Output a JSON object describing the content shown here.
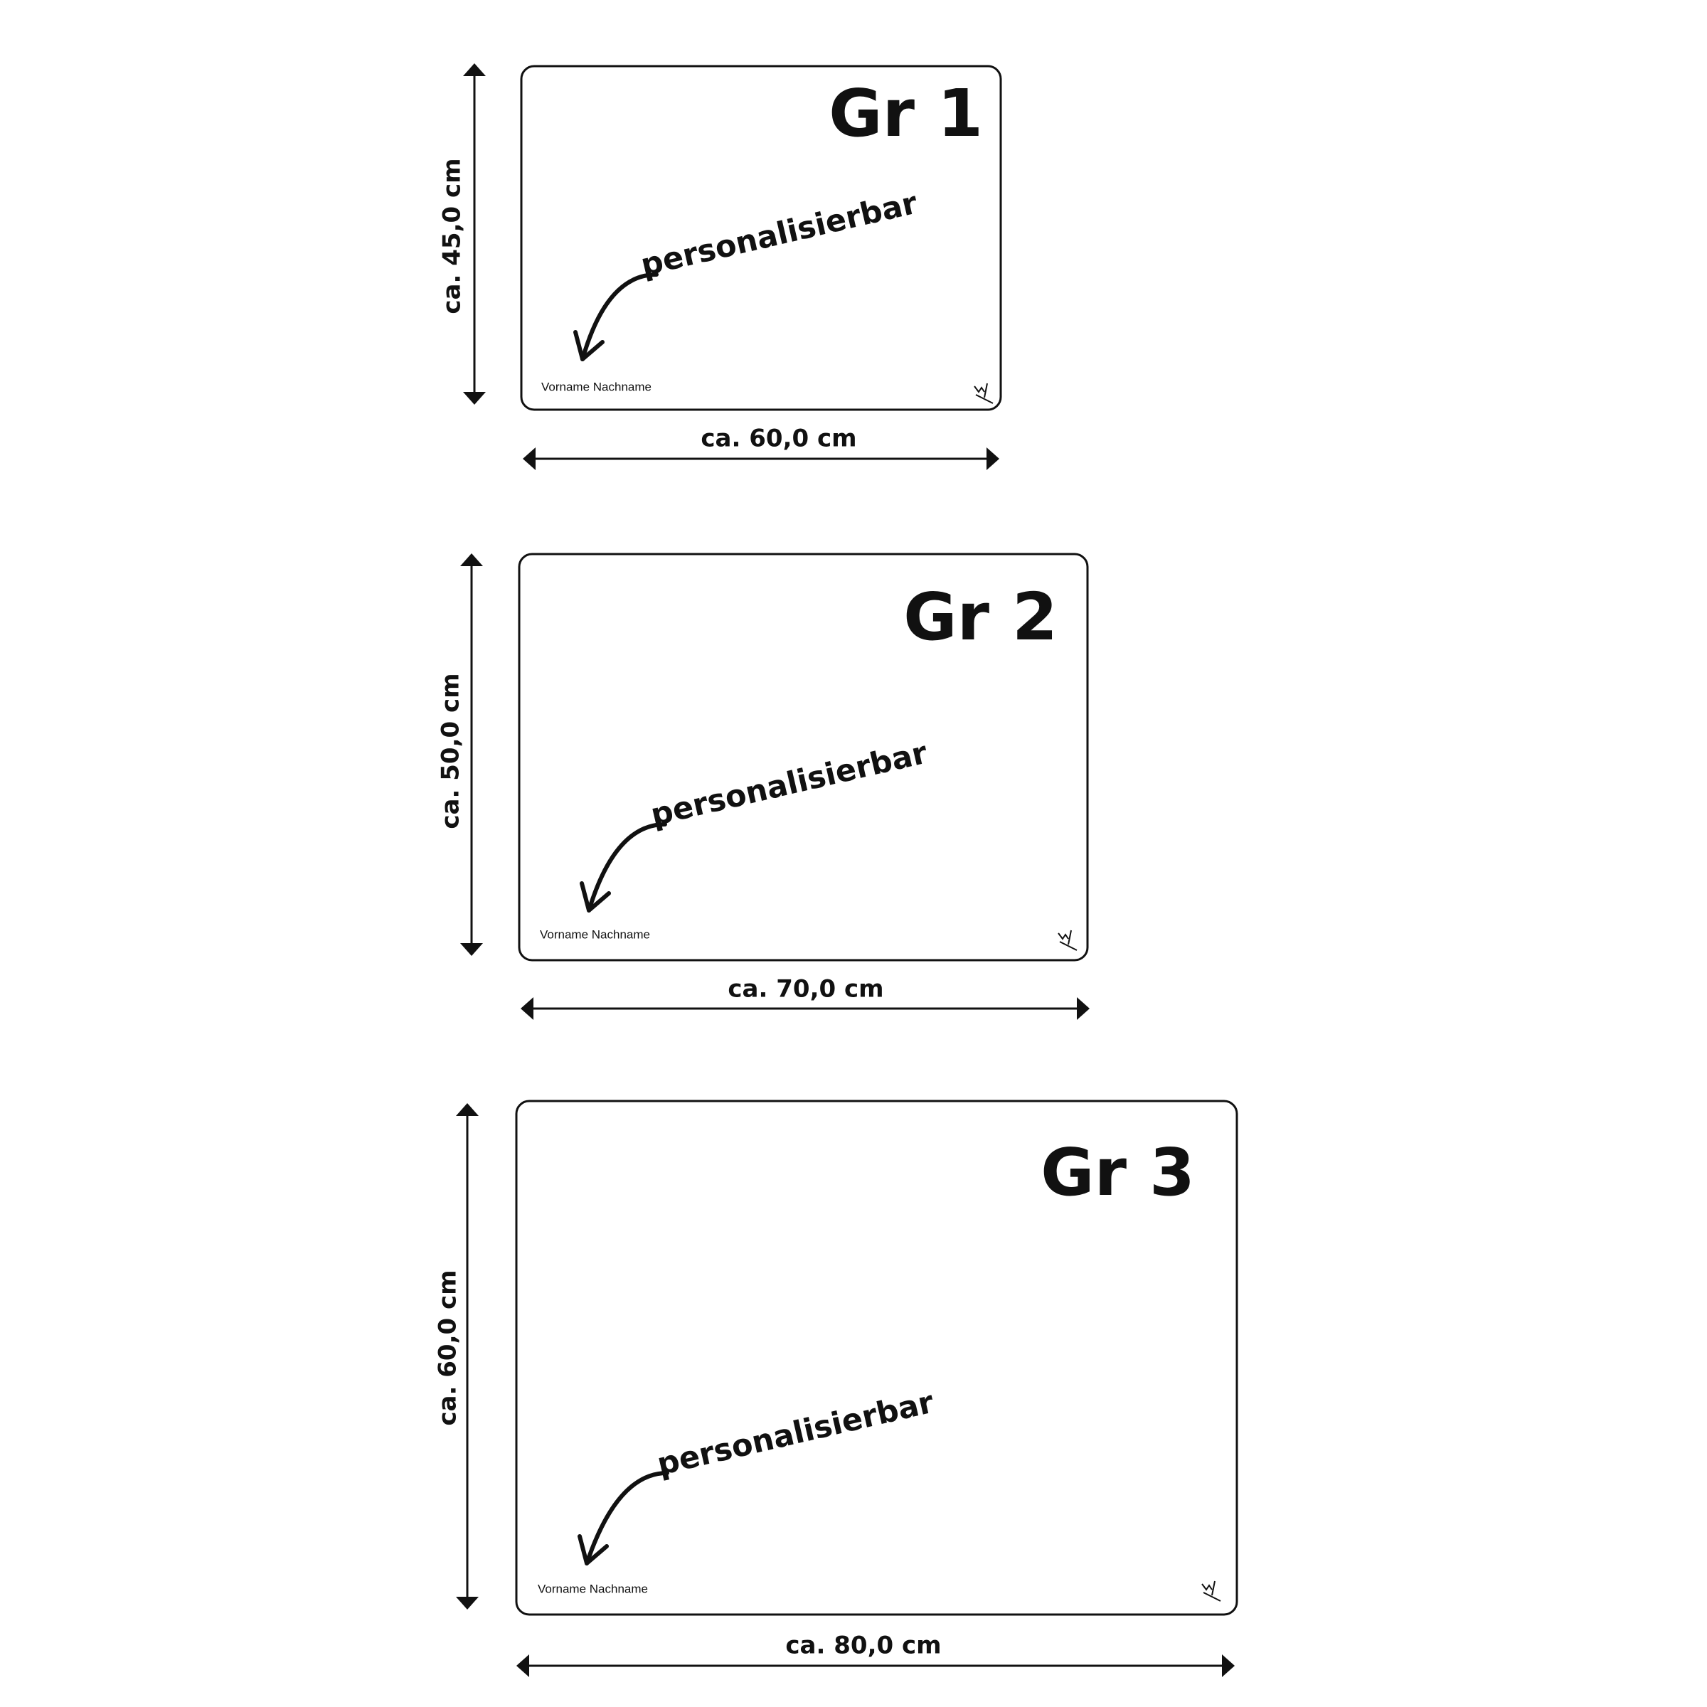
{
  "panels": [
    {
      "title": "Gr 1",
      "personalization": "personalisierbar",
      "name": "Vorname Nachname",
      "width_label": "ca. 60,0 cm",
      "height_label": "ca. 45,0 cm"
    },
    {
      "title": "Gr 2",
      "personalization": "personalisierbar",
      "name": "Vorname Nachname",
      "width_label": "ca. 70,0 cm",
      "height_label": "ca. 50,0 cm"
    },
    {
      "title": "Gr 3",
      "personalization": "personalisierbar",
      "name": "Vorname Nachname",
      "width_label": "ca. 80,0 cm",
      "height_label": "ca. 60,0 cm"
    }
  ]
}
